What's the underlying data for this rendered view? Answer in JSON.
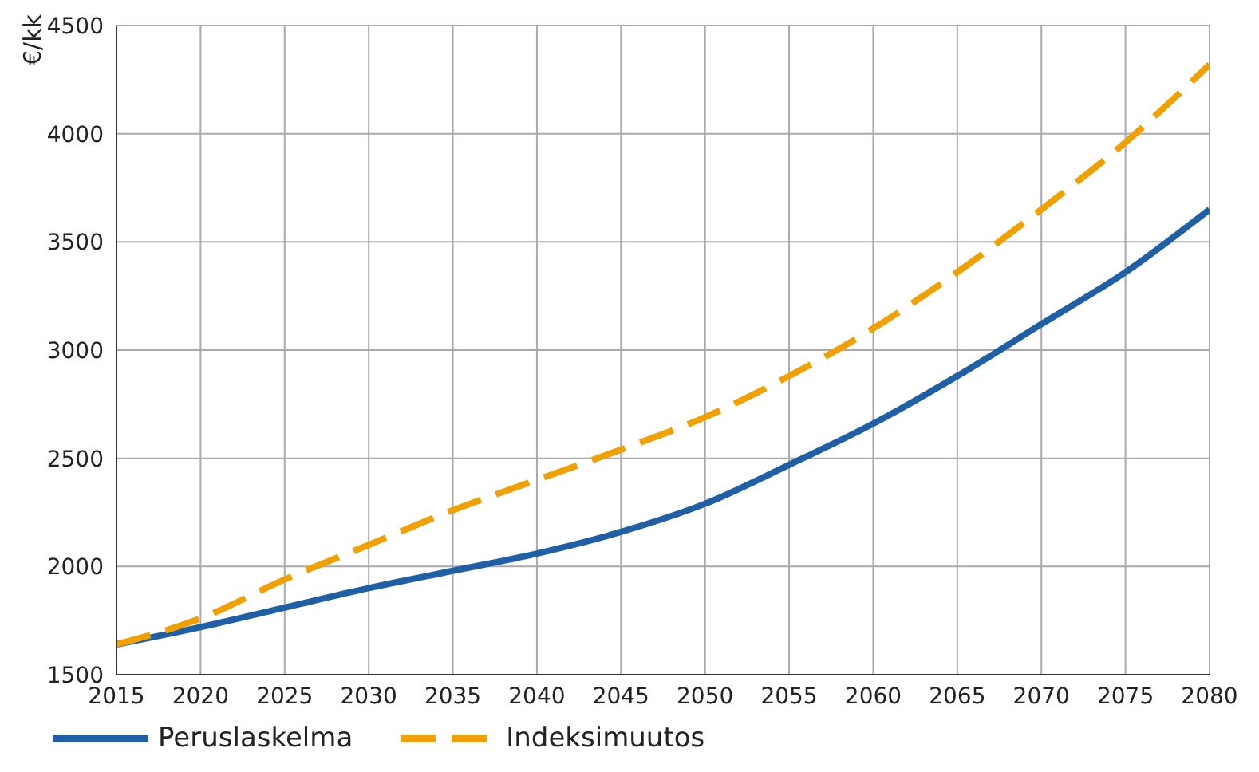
{
  "chart_data": {
    "type": "line",
    "ylabel": "€/kk",
    "x": [
      2015,
      2020,
      2025,
      2030,
      2035,
      2040,
      2045,
      2050,
      2055,
      2060,
      2065,
      2070,
      2075,
      2080
    ],
    "series": [
      {
        "name": "Peruslaskelma",
        "color": "#1f5fa6",
        "line_style": "solid",
        "values": [
          1640,
          1720,
          1810,
          1900,
          1980,
          2060,
          2160,
          2290,
          2470,
          2660,
          2880,
          3120,
          3360,
          3650
        ]
      },
      {
        "name": "Indeksimuutos",
        "color": "#f0a000",
        "line_style": "dashed",
        "values": [
          1640,
          1760,
          1940,
          2100,
          2260,
          2400,
          2540,
          2690,
          2880,
          3100,
          3360,
          3650,
          3960,
          4320
        ]
      }
    ],
    "xlim": [
      2015,
      2080
    ],
    "xticks": [
      2015,
      2020,
      2025,
      2030,
      2035,
      2040,
      2045,
      2050,
      2055,
      2060,
      2065,
      2070,
      2075,
      2080
    ],
    "ylim": [
      1500,
      4500
    ],
    "yticks": [
      1500,
      2000,
      2500,
      3000,
      3500,
      4000,
      4500
    ],
    "grid": true,
    "legend": "bottom left",
    "marker": "none"
  }
}
